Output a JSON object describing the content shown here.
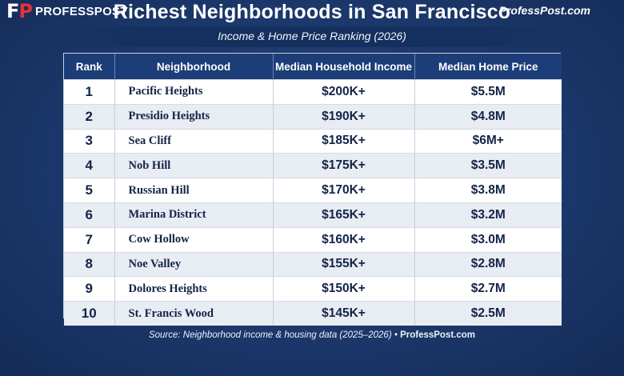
{
  "header": {
    "logo_mark_f": "F",
    "logo_mark_p": "P",
    "logo_text": "PROFESSPOST",
    "title": "Richest Neighborhoods in San Francisco",
    "site": "ProfessPost.com",
    "subtitle": "Income & Home Price Ranking (2026)"
  },
  "colors": {
    "background": "#1d3a72",
    "header_row": "#1c3d78",
    "accent_red": "#e2313b",
    "row_alt": "#e8ecf3"
  },
  "table": {
    "columns": [
      "Rank",
      "Neighborhood",
      "Median Household Income",
      "Median Home Price"
    ],
    "rows": [
      {
        "rank": "1",
        "neighborhood": "Pacific Heights",
        "income": "$200K+",
        "price": "$5.5M"
      },
      {
        "rank": "2",
        "neighborhood": "Presidio Heights",
        "income": "$190K+",
        "price": "$4.8M"
      },
      {
        "rank": "3",
        "neighborhood": "Sea Cliff",
        "income": "$185K+",
        "price": "$6M+"
      },
      {
        "rank": "4",
        "neighborhood": "Nob Hill",
        "income": "$175K+",
        "price": "$3.5M"
      },
      {
        "rank": "5",
        "neighborhood": "Russian Hill",
        "income": "$170K+",
        "price": "$3.8M"
      },
      {
        "rank": "6",
        "neighborhood": "Marina District",
        "income": "$165K+",
        "price": "$3.2M"
      },
      {
        "rank": "7",
        "neighborhood": "Cow Hollow",
        "income": "$160K+",
        "price": "$3.0M"
      },
      {
        "rank": "8",
        "neighborhood": "Noe Valley",
        "income": "$155K+",
        "price": "$2.8M"
      },
      {
        "rank": "9",
        "neighborhood": "Dolores Heights",
        "income": "$150K+",
        "price": "$2.7M"
      },
      {
        "rank": "10",
        "neighborhood": "St. Francis Wood",
        "income": "$145K+",
        "price": "$2.5M"
      }
    ]
  },
  "footer": {
    "source_text": "Source: Neighborhood income & housing data (2025–2026) •",
    "source_site": "ProfessPost.com"
  }
}
